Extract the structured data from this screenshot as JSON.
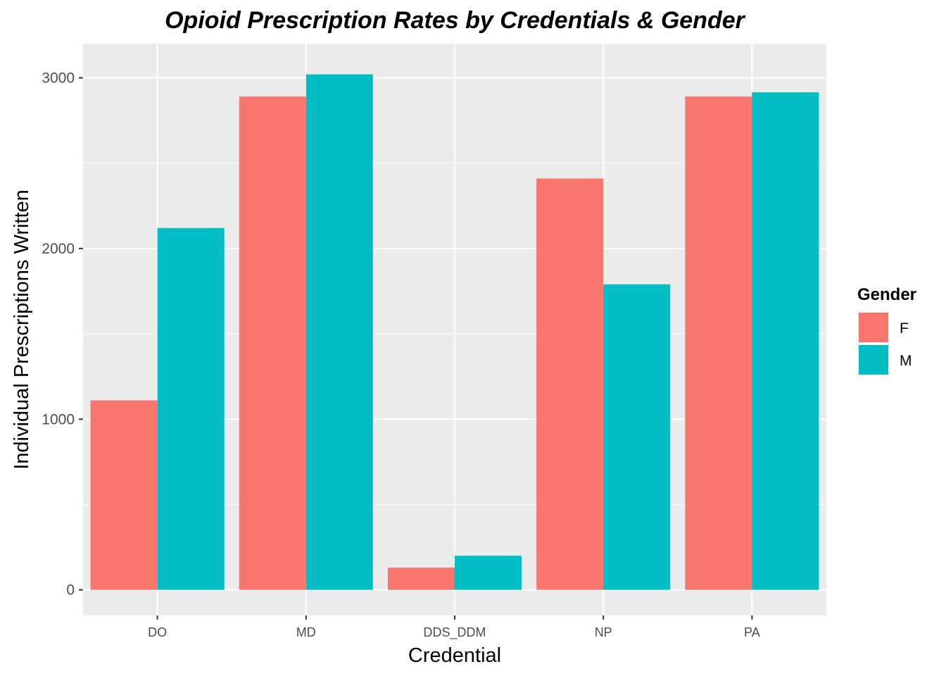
{
  "chart_data": {
    "type": "bar",
    "title": "Opioid Prescription Rates by Credentials & Gender",
    "xlabel": "Credential",
    "ylabel": "Individual Prescriptions Written",
    "categories": [
      "DO",
      "MD",
      "DDS_DDM",
      "NP",
      "PA"
    ],
    "series": [
      {
        "name": "F",
        "color": "#F8766D",
        "values": [
          1110,
          2890,
          130,
          2410,
          2890
        ]
      },
      {
        "name": "M",
        "color": "#00BFC4",
        "values": [
          2120,
          3020,
          200,
          1790,
          2915
        ]
      }
    ],
    "ylim": [
      -150,
      3200
    ],
    "y_ticks": [
      0,
      1000,
      2000,
      3000
    ],
    "y_tick_labels": [
      "0",
      "1000",
      "2000",
      "3000"
    ],
    "grid": true,
    "legend": {
      "title": "Gender",
      "position": "right"
    },
    "panel_background": "#EBEBEB"
  }
}
